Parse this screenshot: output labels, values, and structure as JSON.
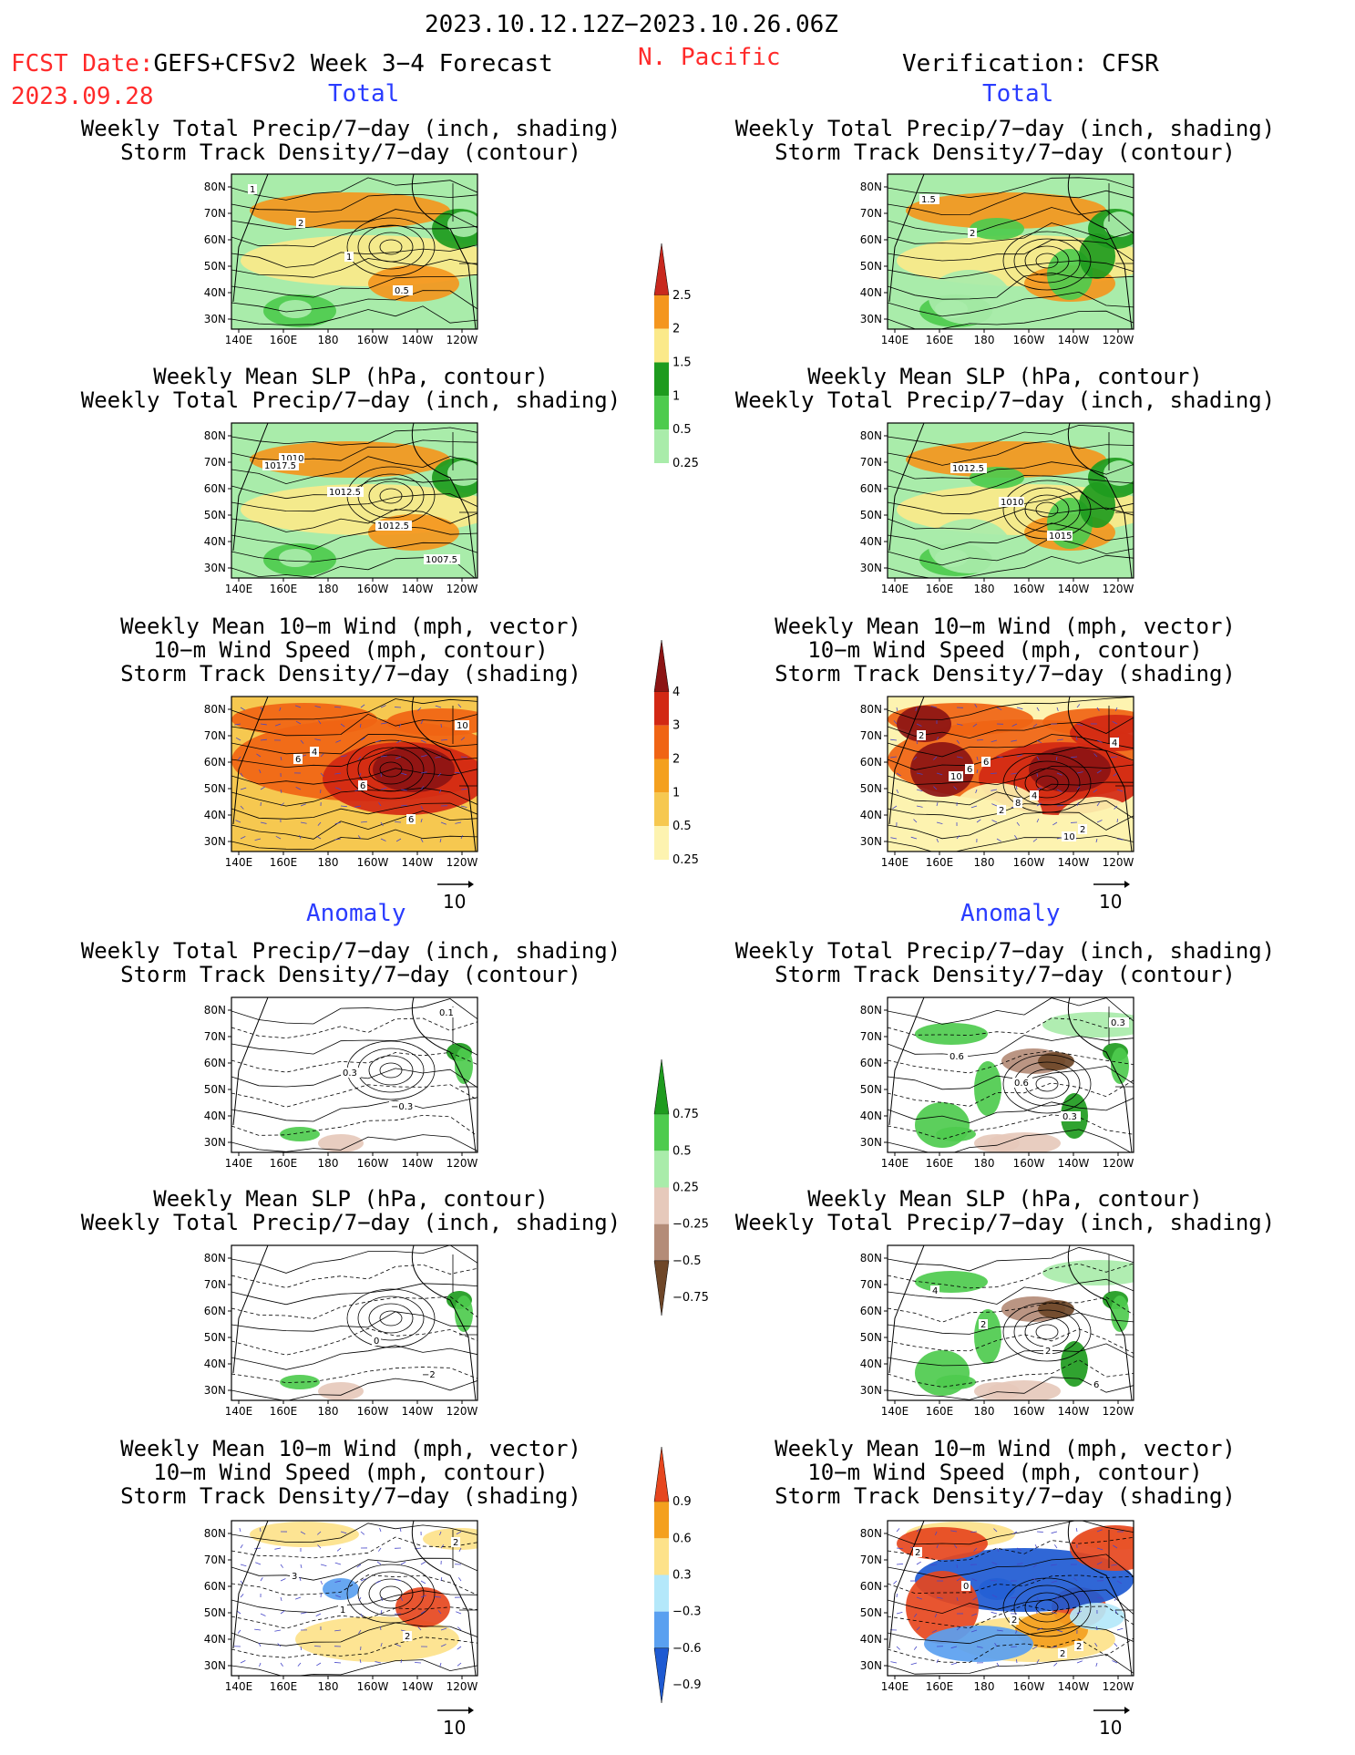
{
  "header": {
    "date_range": "2023.10.12.12Z−2023.10.26.06Z",
    "fcst_label": "FCST Date:",
    "model": "GEFS+CFSv2 Week 3−4 Forecast",
    "fcst_date": "2023.09.28",
    "region": "N. Pacific",
    "verification": "Verification: CFSR"
  },
  "sections": {
    "total": "Total",
    "anomaly": "Anomaly"
  },
  "panel_titles": {
    "precip_storm": [
      "Weekly Total Precip/7−day (inch, shading)",
      "Storm Track Density/7−day (contour)"
    ],
    "slp_precip": [
      "Weekly Mean SLP (hPa, contour)",
      "Weekly Total Precip/7−day (inch, shading)"
    ],
    "wind_storm": [
      "Weekly Mean 10−m Wind (mph, vector)",
      "10−m Wind Speed (mph, contour)",
      "Storm Track Density/7−day (shading)"
    ]
  },
  "axes": {
    "lat_labels": [
      "80N",
      "70N",
      "60N",
      "50N",
      "40N",
      "30N"
    ],
    "lon_labels": [
      "140E",
      "160E",
      "180",
      "160W",
      "140W",
      "120W"
    ]
  },
  "vector_ref": "10",
  "colorbars": {
    "precip_total": {
      "labels": [
        "2.5",
        "2",
        "1.5",
        "1",
        "0.5",
        "0.25"
      ],
      "colors": [
        "#c8281e",
        "#f4961e",
        "#fbe98a",
        "#1e9b1e",
        "#4ecb4e",
        "#a9ecaa"
      ]
    },
    "storm_total": {
      "labels": [
        "4",
        "3",
        "2",
        "1",
        "0.5",
        "0.25"
      ],
      "colors": [
        "#8c1414",
        "#d22814",
        "#f06414",
        "#f4a01e",
        "#f6c850",
        "#fdf3b0"
      ]
    },
    "precip_anom": {
      "labels": [
        "0.75",
        "0.5",
        "0.25",
        "−0.25",
        "−0.5",
        "−0.75"
      ],
      "colors": [
        "#1e9b1e",
        "#4ecb4e",
        "#a9ecaa",
        "#e6c9bb",
        "#b48c78",
        "#6e4628"
      ]
    },
    "storm_anom": {
      "labels": [
        "0.9",
        "0.6",
        "0.3",
        "−0.3",
        "−0.6",
        "−0.9"
      ],
      "colors": [
        "#e6461e",
        "#f4a01e",
        "#fde28a",
        "#b4e8fa",
        "#5aa0f0",
        "#1e5ad2"
      ]
    }
  },
  "contour_labels": {
    "t_fc_precip": [
      "1",
      "2",
      "1",
      "0.5"
    ],
    "t_ob_precip": [
      "1.5",
      "2"
    ],
    "t_fc_slp": [
      "1010",
      "1012.5",
      "1012.5",
      "1007.5",
      "1017.5"
    ],
    "t_ob_slp": [
      "1012.5",
      "1010",
      "1015"
    ],
    "t_fc_wind": [
      "4",
      "6",
      "6",
      "10",
      "6"
    ],
    "t_ob_wind": [
      "6",
      "4",
      "2",
      "2",
      "6",
      "8",
      "10",
      "4",
      "10",
      "2"
    ],
    "a_fc_precip": [
      "0.3",
      "−0.3",
      "0.1"
    ],
    "a_ob_precip": [
      "0.6",
      "0.3",
      "0.3",
      "0.6"
    ],
    "a_fc_slp": [
      "0",
      "−2"
    ],
    "a_ob_slp": [
      "2",
      "6",
      "4",
      "2"
    ],
    "a_fc_wind": [
      "2",
      "2",
      "3",
      "1"
    ],
    "a_ob_wind": [
      "2",
      "2",
      "0",
      "2",
      "2"
    ]
  },
  "chart_data": [
    {
      "type": "heatmap",
      "panel": "total-forecast-precip",
      "section": "Total",
      "title": "Weekly Total Precip/7−day (inch, shading) / Storm Track Density/7−day (contour)",
      "xlabel": "",
      "ylabel": "",
      "x_ticks": [
        "140E",
        "160E",
        "180",
        "160W",
        "140W",
        "120W"
      ],
      "y_ticks": [
        "80N",
        "70N",
        "60N",
        "50N",
        "40N",
        "30N"
      ]
    },
    {
      "type": "heatmap",
      "panel": "total-observed-precip",
      "section": "Total",
      "title": "Weekly Total Precip/7−day (inch, shading) / Storm Track Density/7−day (contour)",
      "xlabel": "",
      "ylabel": ""
    },
    {
      "type": "heatmap",
      "panel": "total-forecast-slp",
      "section": "Total",
      "title": "Weekly Mean SLP (hPa, contour) / Weekly Total Precip/7−day (inch, shading)",
      "xlabel": "",
      "ylabel": ""
    },
    {
      "type": "heatmap",
      "panel": "total-observed-slp",
      "section": "Total",
      "title": "Weekly Mean SLP (hPa, contour) / Weekly Total Precip/7−day (inch, shading)",
      "xlabel": "",
      "ylabel": ""
    },
    {
      "type": "heatmap",
      "panel": "total-forecast-wind",
      "section": "Total",
      "title": "Weekly Mean 10−m Wind (mph, vector) / 10−m Wind Speed (mph, contour) / Storm Track Density/7−day (shading)",
      "xlabel": "",
      "ylabel": ""
    },
    {
      "type": "heatmap",
      "panel": "total-observed-wind",
      "section": "Total",
      "title": "Weekly Mean 10−m Wind (mph, vector) / 10−m Wind Speed (mph, contour) / Storm Track Density/7−day (shading)",
      "xlabel": "",
      "ylabel": ""
    },
    {
      "type": "heatmap",
      "panel": "anomaly-forecast-precip",
      "section": "Anomaly",
      "title": "Weekly Total Precip/7−day (inch, shading) / Storm Track Density/7−day (contour)",
      "xlabel": "",
      "ylabel": ""
    },
    {
      "type": "heatmap",
      "panel": "anomaly-observed-precip",
      "section": "Anomaly",
      "title": "Weekly Total Precip/7−day (inch, shading) / Storm Track Density/7−day (contour)",
      "xlabel": "",
      "ylabel": ""
    },
    {
      "type": "heatmap",
      "panel": "anomaly-forecast-slp",
      "section": "Anomaly",
      "title": "Weekly Mean SLP (hPa, contour) / Weekly Total Precip/7−day (inch, shading)",
      "xlabel": "",
      "ylabel": ""
    },
    {
      "type": "heatmap",
      "panel": "anomaly-observed-slp",
      "section": "Anomaly",
      "title": "Weekly Mean SLP (hPa, contour) / Weekly Total Precip/7−day (inch, shading)",
      "xlabel": "",
      "ylabel": ""
    },
    {
      "type": "heatmap",
      "panel": "anomaly-forecast-wind",
      "section": "Anomaly",
      "title": "Weekly Mean 10−m Wind (mph, vector) / 10−m Wind Speed (mph, contour) / Storm Track Density/7−day (shading)",
      "xlabel": "",
      "ylabel": ""
    },
    {
      "type": "heatmap",
      "panel": "anomaly-observed-wind",
      "section": "Anomaly",
      "title": "Weekly Mean 10−m Wind (mph, vector) / 10−m Wind Speed (mph, contour) / Storm Track Density/7−day (shading)",
      "xlabel": "",
      "ylabel": ""
    }
  ]
}
